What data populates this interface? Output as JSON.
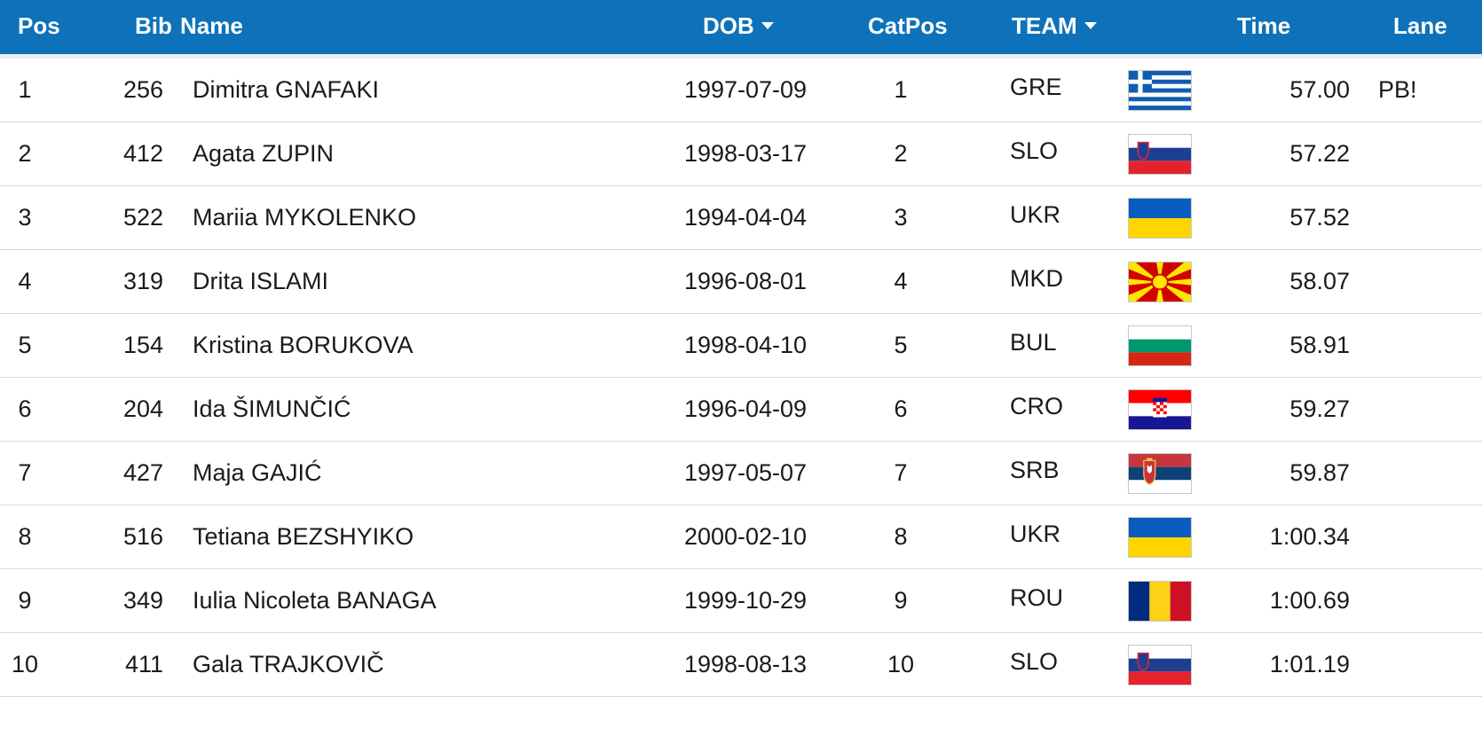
{
  "header": {
    "pos": "Pos",
    "bib": "Bib",
    "name": "Name",
    "dob": "DOB",
    "catpos": "CatPos",
    "team": "TEAM",
    "time": "Time",
    "lane": "Lane"
  },
  "colors": {
    "header_bg": "#0d72b9",
    "header_text": "#ffffff",
    "row_divider": "#d9d9d9"
  },
  "rows": [
    {
      "pos": "1",
      "bib": "256",
      "name": "Dimitra GNAFAKI",
      "dob": "1997-07-09",
      "catpos": "1",
      "team": "GRE",
      "flag": "greece-flag",
      "time": "57.00",
      "lane": "PB!"
    },
    {
      "pos": "2",
      "bib": "412",
      "name": "Agata ZUPIN",
      "dob": "1998-03-17",
      "catpos": "2",
      "team": "SLO",
      "flag": "slovenia-flag",
      "time": "57.22",
      "lane": ""
    },
    {
      "pos": "3",
      "bib": "522",
      "name": "Mariia MYKOLENKO",
      "dob": "1994-04-04",
      "catpos": "3",
      "team": "UKR",
      "flag": "ukraine-flag",
      "time": "57.52",
      "lane": ""
    },
    {
      "pos": "4",
      "bib": "319",
      "name": "Drita ISLAMI",
      "dob": "1996-08-01",
      "catpos": "4",
      "team": "MKD",
      "flag": "north-macedonia-flag",
      "time": "58.07",
      "lane": ""
    },
    {
      "pos": "5",
      "bib": "154",
      "name": "Kristina BORUKOVA",
      "dob": "1998-04-10",
      "catpos": "5",
      "team": "BUL",
      "flag": "bulgaria-flag",
      "time": "58.91",
      "lane": ""
    },
    {
      "pos": "6",
      "bib": "204",
      "name": "Ida ŠIMUNČIĆ",
      "dob": "1996-04-09",
      "catpos": "6",
      "team": "CRO",
      "flag": "croatia-flag",
      "time": "59.27",
      "lane": ""
    },
    {
      "pos": "7",
      "bib": "427",
      "name": "Maja GAJIĆ",
      "dob": "1997-05-07",
      "catpos": "7",
      "team": "SRB",
      "flag": "serbia-flag",
      "time": "59.87",
      "lane": ""
    },
    {
      "pos": "8",
      "bib": "516",
      "name": "Tetiana BEZSHYIKO",
      "dob": "2000-02-10",
      "catpos": "8",
      "team": "UKR",
      "flag": "ukraine-flag",
      "time": "1:00.34",
      "lane": ""
    },
    {
      "pos": "9",
      "bib": "349",
      "name": "Iulia Nicoleta BANAGA",
      "dob": "1999-10-29",
      "catpos": "9",
      "team": "ROU",
      "flag": "romania-flag",
      "time": "1:00.69",
      "lane": ""
    },
    {
      "pos": "10",
      "bib": "411",
      "name": "Gala TRAJKOVIČ",
      "dob": "1998-08-13",
      "catpos": "10",
      "team": "SLO",
      "flag": "slovenia-flag",
      "time": "1:01.19",
      "lane": ""
    }
  ]
}
